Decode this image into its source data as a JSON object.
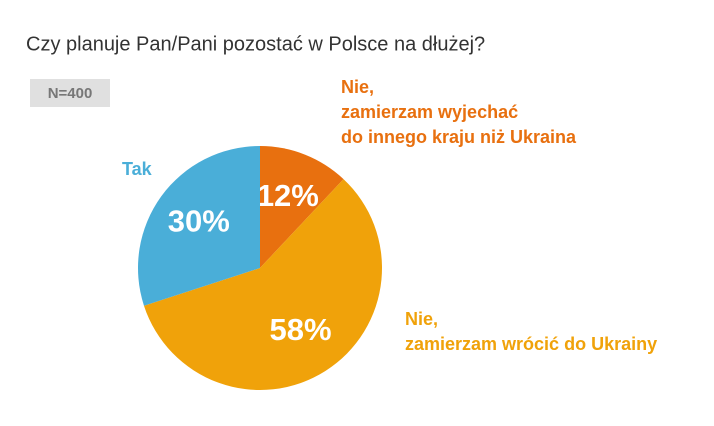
{
  "chart_data": {
    "type": "pie",
    "title": "Czy planuje Pan/Pani pozostać w Polsce na dłużej?",
    "annotation": "N=400",
    "categories": [
      [
        "Nie,",
        "zamierzam wyjechać",
        "do innego kraju niż Ukraina"
      ],
      [
        "Nie,",
        "zamierzam wrócić do Ukrainy"
      ],
      [
        "Tak"
      ]
    ],
    "values": [
      12,
      58,
      30
    ],
    "value_labels": [
      "12%",
      "58%",
      "30%"
    ],
    "colors": [
      "#e8700f",
      "#f0a20a",
      "#4aaed8"
    ]
  }
}
